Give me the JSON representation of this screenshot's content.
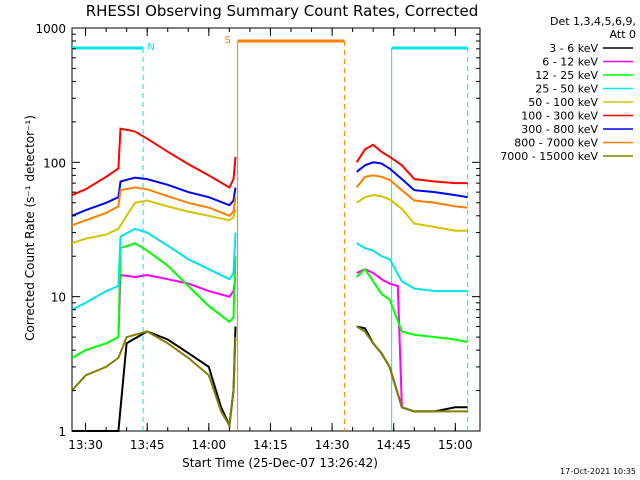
{
  "chart_data": {
    "type": "line",
    "title": "RHESSI Observing Summary Count Rates, Corrected",
    "xlabel": "Start Time (25-Dec-07 13:26:42)",
    "ylabel": "Corrected Count Rate (s⁻¹ detector⁻¹)",
    "y_scale": "log",
    "ylim": [
      1,
      1000
    ],
    "xlim": [
      "13:26:42",
      "15:06:00"
    ],
    "x_ticks": [
      "13:30",
      "13:45",
      "14:00",
      "14:15",
      "14:30",
      "14:45",
      "15:00"
    ],
    "y_ticks": [
      "1",
      "10",
      "100",
      "1000"
    ],
    "grid": false,
    "legend_title": [
      "Det 1,3,4,5,6,9,",
      "Att 0"
    ],
    "legend_position": "right",
    "footer_date": "17-Oct-2021 10:35",
    "markers": [
      {
        "label": "N",
        "color": "#00e5e5",
        "start": "13:26:42",
        "end": "13:44:00",
        "end2_start": "14:44:30",
        "end2_end": "15:03:00"
      },
      {
        "label": "S",
        "color": "#ff7f00",
        "start": "14:07:00",
        "end": "14:33:00"
      }
    ],
    "series": [
      {
        "name": "3 - 6 keV",
        "color": "#000000",
        "x": [
          "13:26:42",
          "13:38:00",
          "13:40:00",
          "13:45:00",
          "13:50:00",
          "13:55:00",
          "14:00:00",
          "14:03:00",
          "14:05:00",
          "14:06:00",
          "14:06:30",
          "14:36:00",
          "14:38:00",
          "14:40:00",
          "14:42:00",
          "14:44:00",
          "14:47:00",
          "14:50:00",
          "14:55:00",
          "15:00:00",
          "15:03:00"
        ],
        "y": [
          1,
          1,
          4.5,
          5.5,
          4.8,
          3.8,
          3.0,
          1.5,
          1.1,
          2.0,
          6,
          6,
          5.8,
          4.5,
          3.8,
          3.0,
          1.5,
          1.4,
          1.4,
          1.5,
          1.5
        ]
      },
      {
        "name": "6 - 12 keV",
        "color": "#ff00ff",
        "x": [
          "13:38:00",
          "13:38:30",
          "13:42:00",
          "13:45:00",
          "13:50:00",
          "13:55:00",
          "14:00:00",
          "14:05:00",
          "14:06:00",
          "14:06:30",
          "14:36:00",
          "14:38:00",
          "14:40:00",
          "14:42:00",
          "14:44:00",
          "14:46:00",
          "14:47:00"
        ],
        "y": [
          5.0,
          14.5,
          14.0,
          14.5,
          13.5,
          12.5,
          11.0,
          10.0,
          11.0,
          14,
          15,
          16,
          15,
          13.5,
          12.5,
          12.0,
          1.5
        ]
      },
      {
        "name": "12 - 25 keV",
        "color": "#00ff00",
        "x": [
          "13:26:42",
          "13:30:00",
          "13:35:00",
          "13:38:00",
          "13:38:30",
          "13:42:00",
          "13:45:00",
          "13:50:00",
          "13:55:00",
          "14:00:00",
          "14:05:00",
          "14:06:00",
          "14:06:30",
          "14:36:00",
          "14:38:00",
          "14:40:00",
          "14:42:00",
          "14:44:00",
          "14:47:00",
          "14:50:00",
          "14:55:00",
          "15:00:00",
          "15:03:00"
        ],
        "y": [
          3.5,
          4.0,
          4.5,
          5.0,
          23,
          25,
          22,
          17,
          12,
          8.5,
          6.5,
          7.0,
          20,
          14,
          16,
          13,
          10.5,
          9.5,
          5.5,
          5.2,
          5.0,
          4.8,
          4.6
        ]
      },
      {
        "name": "25 - 50 keV",
        "color": "#00e5e5",
        "x": [
          "13:26:42",
          "13:30:00",
          "13:35:00",
          "13:38:00",
          "13:38:30",
          "13:42:00",
          "13:45:00",
          "13:50:00",
          "13:55:00",
          "14:00:00",
          "14:05:00",
          "14:06:00",
          "14:06:30",
          "14:36:00",
          "14:38:00",
          "14:40:00",
          "14:42:00",
          "14:44:00",
          "14:47:00",
          "14:50:00",
          "14:55:00",
          "15:00:00",
          "15:03:00"
        ],
        "y": [
          8.0,
          9.0,
          11.0,
          12.0,
          28,
          32,
          30,
          24,
          19,
          16,
          13.5,
          15,
          30,
          25,
          23,
          22,
          20,
          19,
          13,
          11.5,
          11.0,
          11.0,
          11.0
        ]
      },
      {
        "name": "50 - 100 keV",
        "color": "#d4c400",
        "x": [
          "13:26:42",
          "13:30:00",
          "13:35:00",
          "13:38:00",
          "13:42:00",
          "13:45:00",
          "13:50:00",
          "13:55:00",
          "14:00:00",
          "14:05:00",
          "14:06:00",
          "14:06:30",
          "14:36:00",
          "14:38:00",
          "14:40:00",
          "14:42:00",
          "14:44:00",
          "14:47:00",
          "14:50:00",
          "14:55:00",
          "15:00:00",
          "15:03:00"
        ],
        "y": [
          25,
          27,
          29,
          32,
          50,
          52,
          47,
          43,
          40,
          37,
          39,
          45,
          50,
          55,
          57,
          56,
          53,
          45,
          35,
          33,
          31,
          31
        ]
      },
      {
        "name": "100 - 300 keV",
        "color": "#ff0000",
        "x": [
          "13:26:42",
          "13:30:00",
          "13:35:00",
          "13:38:00",
          "13:38:30",
          "13:42:00",
          "13:45:00",
          "13:50:00",
          "13:55:00",
          "14:00:00",
          "14:05:00",
          "14:06:00",
          "14:06:30",
          "14:36:00",
          "14:38:00",
          "14:40:00",
          "14:42:00",
          "14:44:00",
          "14:47:00",
          "14:50:00",
          "14:55:00",
          "15:00:00",
          "15:03:00"
        ],
        "y": [
          57,
          63,
          78,
          90,
          178,
          170,
          150,
          120,
          97,
          80,
          65,
          75,
          110,
          100,
          125,
          135,
          120,
          110,
          95,
          75,
          72,
          70,
          70
        ]
      },
      {
        "name": "300 - 800 keV",
        "color": "#0000ff",
        "x": [
          "13:26:42",
          "13:30:00",
          "13:35:00",
          "13:38:00",
          "13:38:30",
          "13:42:00",
          "13:45:00",
          "13:50:00",
          "13:55:00",
          "14:00:00",
          "14:05:00",
          "14:06:00",
          "14:06:30",
          "14:36:00",
          "14:38:00",
          "14:40:00",
          "14:42:00",
          "14:44:00",
          "14:47:00",
          "14:50:00",
          "14:55:00",
          "15:00:00",
          "15:03:00"
        ],
        "y": [
          40,
          44,
          50,
          55,
          72,
          77,
          75,
          68,
          60,
          55,
          48,
          52,
          65,
          85,
          95,
          100,
          98,
          90,
          75,
          62,
          60,
          57,
          55
        ]
      },
      {
        "name": "800 - 7000 keV",
        "color": "#ff7f00",
        "x": [
          "13:26:42",
          "13:30:00",
          "13:35:00",
          "13:38:00",
          "13:38:30",
          "13:42:00",
          "13:45:00",
          "13:50:00",
          "13:55:00",
          "14:00:00",
          "14:05:00",
          "14:06:00",
          "14:06:30",
          "14:36:00",
          "14:38:00",
          "14:40:00",
          "14:42:00",
          "14:44:00",
          "14:47:00",
          "14:50:00",
          "14:55:00",
          "15:00:00",
          "15:03:00"
        ],
        "y": [
          34,
          37,
          42,
          47,
          62,
          65,
          63,
          56,
          50,
          46,
          40,
          43,
          55,
          65,
          78,
          80,
          78,
          74,
          62,
          52,
          50,
          47,
          46
        ]
      },
      {
        "name": "7000 - 15000 keV",
        "color": "#7f7f00",
        "x": [
          "13:26:42",
          "13:30:00",
          "13:35:00",
          "13:38:00",
          "13:40:00",
          "13:45:00",
          "13:50:00",
          "13:55:00",
          "14:00:00",
          "14:03:00",
          "14:05:00",
          "14:06:00",
          "14:06:30",
          "14:36:00",
          "14:38:00",
          "14:40:00",
          "14:42:00",
          "14:44:00",
          "14:47:00",
          "14:50:00",
          "14:55:00",
          "15:00:00",
          "15:03:00"
        ],
        "y": [
          2.0,
          2.6,
          3.0,
          3.5,
          5.0,
          5.5,
          4.5,
          3.5,
          2.6,
          1.4,
          1.1,
          2.0,
          5.0,
          6.0,
          5.5,
          4.5,
          3.8,
          3.0,
          1.5,
          1.4,
          1.4,
          1.4,
          1.4
        ]
      }
    ]
  }
}
